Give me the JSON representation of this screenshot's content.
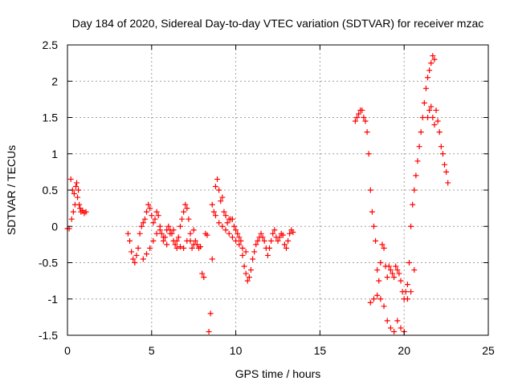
{
  "chart_data": {
    "type": "scatter",
    "title": "Day 184 of 2020, Sidereal Day-to-day VTEC variation (SDTVAR) for receiver mzac",
    "xlabel": "GPS time / hours",
    "ylabel": "SDTVAR / TECUs",
    "xlim": [
      0,
      25
    ],
    "ylim": [
      -1.5,
      2.5
    ],
    "xticks": [
      0,
      5,
      10,
      15,
      20,
      25
    ],
    "xtick_labels": [
      "0",
      "5",
      "10",
      "15",
      "20",
      "25"
    ],
    "yticks": [
      -1.5,
      -1,
      -0.5,
      0,
      0.5,
      1,
      1.5,
      2,
      2.5
    ],
    "ytick_labels": [
      "-1.5",
      "-1",
      "-0.5",
      "0",
      "0.5",
      "1",
      "1.5",
      "2",
      "2.5"
    ],
    "grid": true,
    "marker": "+",
    "color": "#ff0000",
    "series": [
      {
        "name": "SDTVAR",
        "x": [
          0.0,
          0.1,
          0.2,
          0.25,
          0.3,
          0.35,
          0.4,
          0.45,
          0.5,
          0.55,
          0.6,
          0.65,
          0.7,
          0.75,
          0.8,
          0.9,
          1.0,
          1.1,
          3.6,
          3.7,
          3.8,
          3.9,
          4.0,
          4.1,
          4.2,
          4.3,
          4.4,
          4.5,
          4.6,
          4.7,
          4.8,
          4.9,
          5.0,
          5.1,
          5.2,
          5.3,
          5.4,
          5.5,
          5.6,
          5.7,
          5.8,
          5.9,
          6.0,
          6.1,
          6.2,
          6.3,
          6.4,
          6.5,
          6.6,
          6.7,
          6.8,
          6.9,
          7.0,
          7.1,
          7.2,
          7.3,
          7.4,
          7.5,
          7.6,
          7.7,
          7.8,
          7.9,
          4.5,
          4.7,
          4.9,
          5.1,
          5.3,
          5.5,
          5.7,
          5.9,
          6.1,
          6.3,
          6.5,
          6.7,
          6.9,
          7.1,
          7.3,
          7.5,
          8.0,
          8.1,
          8.2,
          8.3,
          8.4,
          8.5,
          8.6,
          8.7,
          8.8,
          8.9,
          9.0,
          9.1,
          9.2,
          9.3,
          9.4,
          9.5,
          9.6,
          9.7,
          9.8,
          9.9,
          10.0,
          10.1,
          10.2,
          10.3,
          10.4,
          10.5,
          10.6,
          10.7,
          10.8,
          10.9,
          11.0,
          11.1,
          11.2,
          11.3,
          11.4,
          11.5,
          11.6,
          11.7,
          11.8,
          11.9,
          12.0,
          12.1,
          12.2,
          12.3,
          12.4,
          12.5,
          12.6,
          12.7,
          12.8,
          12.9,
          13.0,
          13.1,
          13.2,
          13.3,
          13.4,
          8.6,
          8.8,
          9.0,
          9.2,
          9.4,
          9.6,
          9.8,
          10.0,
          10.2,
          10.4,
          10.6,
          17.1,
          17.2,
          17.3,
          17.4,
          17.5,
          17.6,
          17.7,
          17.8,
          17.9,
          18.0,
          18.1,
          18.2,
          18.3,
          18.4,
          18.5,
          18.6,
          18.7,
          18.8,
          18.9,
          19.0,
          19.1,
          19.2,
          19.3,
          19.4,
          19.5,
          19.6,
          19.7,
          19.8,
          19.9,
          20.0,
          20.1,
          20.2,
          20.3,
          20.4,
          20.5,
          20.6,
          20.7,
          20.8,
          20.9,
          21.0,
          21.1,
          21.2,
          21.3,
          21.4,
          21.5,
          21.6,
          21.7,
          21.8,
          21.9,
          22.0,
          22.1,
          22.2,
          22.3,
          22.4,
          22.5,
          22.6,
          18.0,
          18.2,
          18.4,
          18.6,
          18.8,
          19.0,
          19.2,
          19.4,
          19.6,
          19.8,
          20.0,
          20.2,
          20.4,
          20.6,
          21.4,
          21.5,
          21.6,
          21.7,
          21.8
        ],
        "y": [
          -0.03,
          -0.03,
          0.65,
          0.1,
          0.5,
          0.2,
          0.45,
          0.3,
          0.55,
          0.6,
          0.4,
          0.5,
          0.3,
          0.25,
          0.2,
          0.22,
          0.18,
          0.2,
          -0.1,
          -0.2,
          -0.35,
          -0.45,
          -0.5,
          -0.4,
          -0.3,
          -0.1,
          0.0,
          0.05,
          0.1,
          0.2,
          0.3,
          0.25,
          0.15,
          0.05,
          0.1,
          0.2,
          0.15,
          0.0,
          -0.1,
          -0.2,
          -0.15,
          -0.05,
          0.0,
          -0.05,
          -0.1,
          -0.2,
          -0.25,
          -0.3,
          -0.15,
          0.0,
          0.1,
          0.2,
          0.3,
          0.25,
          0.1,
          -0.2,
          -0.3,
          -0.25,
          -0.2,
          -0.25,
          -0.3,
          -0.28,
          -0.45,
          -0.38,
          -0.3,
          -0.2,
          -0.1,
          -0.05,
          -0.15,
          -0.25,
          -0.1,
          -0.05,
          -0.2,
          -0.28,
          -0.3,
          -0.2,
          -0.1,
          -0.05,
          -0.65,
          -0.7,
          -0.1,
          -0.12,
          -1.45,
          -1.2,
          -0.45,
          0.2,
          0.55,
          0.65,
          0.5,
          0.35,
          0.4,
          0.2,
          0.15,
          0.05,
          0.1,
          0.1,
          0.1,
          0.0,
          -0.05,
          -0.1,
          -0.15,
          -0.2,
          -0.4,
          -0.55,
          -0.65,
          -0.75,
          -0.7,
          -0.6,
          -0.45,
          -0.35,
          -0.25,
          -0.2,
          -0.15,
          -0.1,
          -0.15,
          -0.2,
          -0.3,
          -0.4,
          -0.3,
          -0.2,
          -0.1,
          -0.05,
          -0.15,
          -0.2,
          -0.15,
          -0.1,
          -0.12,
          -0.25,
          -0.3,
          -0.2,
          -0.1,
          -0.05,
          -0.08,
          0.3,
          0.15,
          0.05,
          0.0,
          -0.05,
          -0.1,
          -0.15,
          -0.2,
          -0.25,
          -0.3,
          -0.35,
          1.45,
          1.5,
          1.55,
          1.6,
          1.6,
          1.5,
          1.45,
          1.3,
          1.0,
          0.5,
          0.2,
          0.0,
          -0.2,
          -0.6,
          -0.75,
          -0.5,
          -0.25,
          -0.3,
          -0.55,
          -0.7,
          -0.55,
          -0.6,
          -0.65,
          -0.7,
          -0.55,
          -0.6,
          -0.65,
          -0.75,
          -0.9,
          -1.0,
          -0.9,
          -0.8,
          -0.5,
          0.0,
          0.3,
          0.5,
          0.7,
          0.9,
          1.1,
          1.3,
          1.5,
          1.7,
          1.9,
          2.05,
          2.15,
          2.25,
          2.35,
          2.3,
          1.6,
          1.45,
          1.3,
          1.1,
          1.0,
          0.85,
          0.75,
          0.6,
          -1.05,
          -1.0,
          -0.95,
          -1.0,
          -1.1,
          -1.3,
          -1.4,
          -1.45,
          -1.3,
          -1.4,
          -1.45,
          -1.0,
          -0.9,
          -0.6,
          1.5,
          1.6,
          1.65,
          1.5,
          1.4
        ]
      }
    ]
  }
}
